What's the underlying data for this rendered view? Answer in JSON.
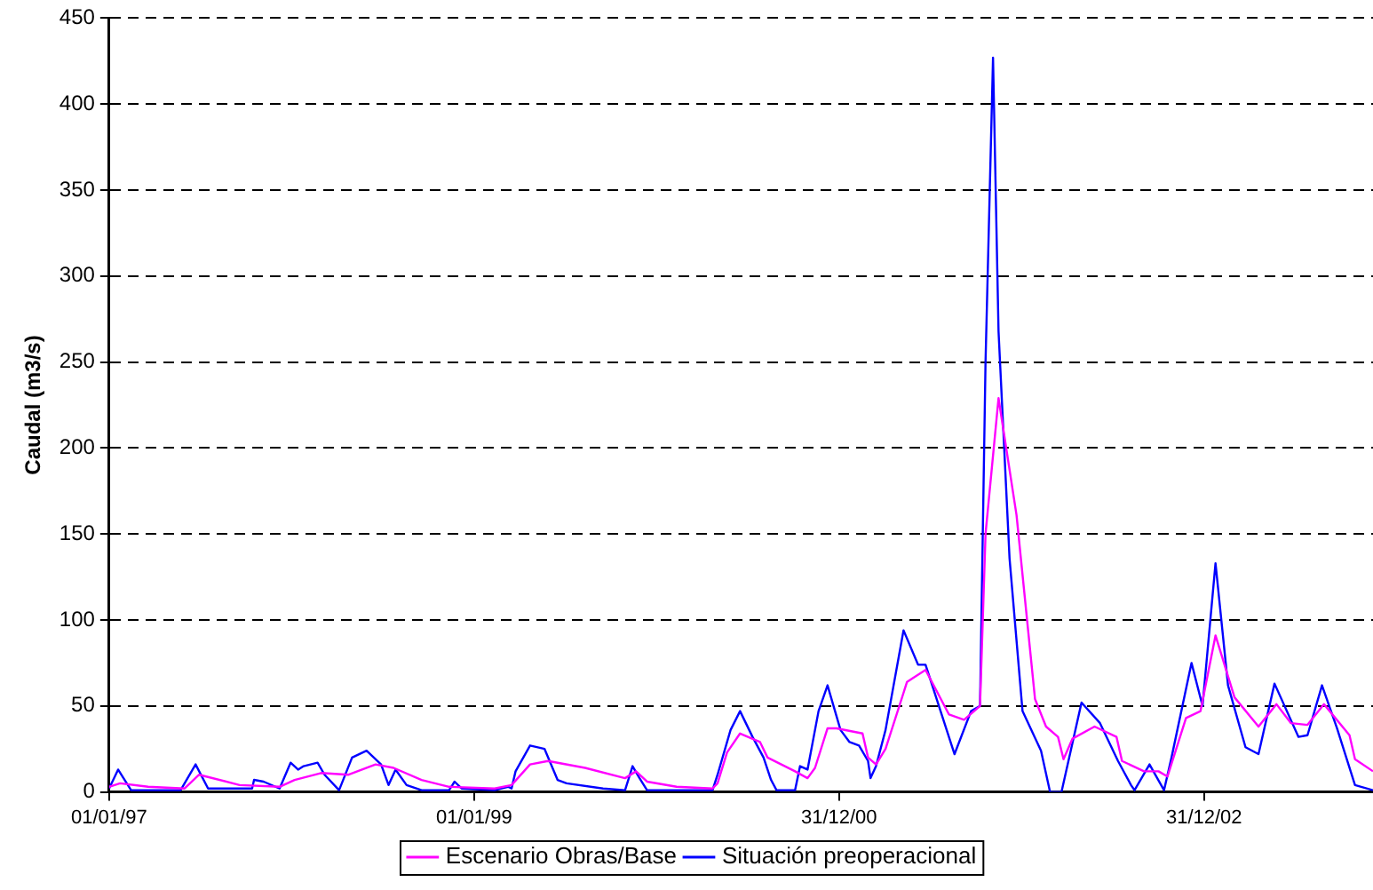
{
  "chart_data": {
    "type": "line",
    "ylabel": "Caudal (m3/s)",
    "xlim": [
      "1997-01-01",
      "2003-12-04"
    ],
    "xticks": [
      {
        "value": "1997-01-01",
        "label": "01/01/97"
      },
      {
        "value": "1999-01-01",
        "label": "01/01/99"
      },
      {
        "value": "2000-12-31",
        "label": "31/12/00"
      },
      {
        "value": "2002-12-31",
        "label": "31/12/02"
      }
    ],
    "ylim": [
      0,
      450
    ],
    "yticks": [
      0,
      50,
      100,
      150,
      200,
      250,
      300,
      350,
      400,
      450
    ],
    "grid": "y",
    "legend": "bottom",
    "marker": "none",
    "line_style": "solid",
    "series": [
      {
        "name": "Escenario Obras/Base",
        "color": "#ff00ff",
        "x": [
          "1997-01-01",
          "1997-01-23",
          "1997-03-20",
          "1997-06-01",
          "1997-06-30",
          "1997-09-19",
          "1997-12-08",
          "1998-01-07",
          "1998-03-01",
          "1998-04-25",
          "1998-06-18",
          "1998-07-24",
          "1998-09-18",
          "1998-11-12",
          "1999-02-11",
          "1999-03-17",
          "1999-04-23",
          "1999-05-29",
          "1999-08-11",
          "1999-10-30",
          "1999-11-21",
          "1999-12-13",
          "2000-02-10",
          "2000-04-22",
          "2000-05-02",
          "2000-05-21",
          "2000-06-16",
          "2000-07-26",
          "2000-08-10",
          "2000-10-04",
          "2000-10-29",
          "2000-11-13",
          "2000-12-08",
          "2000-12-26",
          "2001-02-16",
          "2001-02-27",
          "2001-03-15",
          "2001-04-03",
          "2001-05-16",
          "2001-06-22",
          "2001-08-08",
          "2001-09-07",
          "2001-10-09",
          "2001-10-20",
          "2001-11-15",
          "2001-12-21",
          "2002-01-27",
          "2002-02-18",
          "2002-03-14",
          "2002-03-25",
          "2002-04-12",
          "2002-05-26",
          "2002-07-09",
          "2002-07-20",
          "2002-09-02",
          "2002-10-01",
          "2002-10-19",
          "2002-11-25",
          "2002-12-24",
          "2003-01-23",
          "2003-03-02",
          "2003-04-19",
          "2003-05-25",
          "2003-06-23",
          "2003-07-26",
          "2003-08-28",
          "2003-10-18",
          "2003-10-29",
          "2003-12-04"
        ],
        "values": [
          3,
          5,
          3,
          2,
          10,
          4,
          3,
          7,
          11,
          10,
          16,
          14,
          7,
          3,
          2,
          4,
          16,
          18,
          14,
          8,
          12,
          6,
          3,
          2,
          5,
          23,
          34,
          29,
          20,
          12,
          8,
          14,
          37,
          37,
          34,
          20,
          16,
          25,
          64,
          71,
          45,
          42,
          50,
          150,
          229,
          161,
          54,
          38,
          32,
          19,
          31,
          38,
          32,
          18,
          12,
          12,
          9,
          43,
          47,
          91,
          55,
          38,
          51,
          40,
          39,
          51,
          33,
          19,
          12
        ]
      },
      {
        "name": "Situación preoperacional",
        "color": "#0000ff",
        "x": [
          "1997-01-01",
          "1997-01-19",
          "1997-02-14",
          "1997-05-24",
          "1997-06-23",
          "1997-07-18",
          "1997-10-14",
          "1997-10-18",
          "1997-11-06",
          "1997-12-08",
          "1997-12-30",
          "1998-01-14",
          "1998-01-25",
          "1998-02-22",
          "1998-03-08",
          "1998-04-06",
          "1998-05-02",
          "1998-05-31",
          "1998-06-29",
          "1998-07-14",
          "1998-07-28",
          "1998-08-19",
          "1998-09-18",
          "1998-11-12",
          "1998-11-23",
          "1998-12-07",
          "1999-02-11",
          "1999-03-10",
          "1999-03-17",
          "1999-03-25",
          "1999-04-23",
          "1999-05-22",
          "1999-06-17",
          "1999-07-05",
          "1999-09-16",
          "1999-10-30",
          "1999-11-14",
          "1999-11-28",
          "1999-12-13",
          "2000-04-22",
          "2000-05-02",
          "2000-05-28",
          "2000-06-16",
          "2000-07-11",
          "2000-08-02",
          "2000-08-17",
          "2000-08-28",
          "2000-10-04",
          "2000-10-14",
          "2000-10-29",
          "2000-11-20",
          "2000-12-08",
          "2001-01-03",
          "2001-01-21",
          "2001-02-09",
          "2001-02-27",
          "2001-03-04",
          "2001-03-15",
          "2001-04-03",
          "2001-05-09",
          "2001-06-07",
          "2001-06-22",
          "2001-08-19",
          "2001-09-21",
          "2001-10-09",
          "2001-10-20",
          "2001-11-04",
          "2001-11-15",
          "2001-12-07",
          "2002-01-02",
          "2002-02-08",
          "2002-02-26",
          "2002-03-21",
          "2002-04-30",
          "2002-06-06",
          "2002-07-12",
          "2002-08-07",
          "2002-08-14",
          "2002-09-13",
          "2002-10-12",
          "2002-10-27",
          "2002-12-06",
          "2002-12-28",
          "2003-01-23",
          "2003-02-17",
          "2003-03-24",
          "2003-04-19",
          "2003-05-21",
          "2003-07-08",
          "2003-07-26",
          "2003-08-24",
          "2003-09-23",
          "2003-10-29",
          "2003-12-04"
        ],
        "values": [
          2,
          13,
          1,
          1,
          16,
          2,
          2,
          7,
          6,
          2,
          17,
          13,
          15,
          17,
          10,
          1,
          20,
          24,
          16,
          4,
          13,
          4,
          1,
          1,
          6,
          2,
          1,
          3,
          2,
          12,
          27,
          25,
          7,
          5,
          2,
          1,
          15,
          8,
          1,
          1,
          10,
          36,
          47,
          32,
          20,
          7,
          1,
          1,
          15,
          13,
          47,
          62,
          36,
          29,
          27,
          18,
          8,
          15,
          36,
          94,
          74,
          74,
          22,
          47,
          50,
          250,
          427,
          268,
          136,
          47,
          24,
          0,
          0,
          52,
          40,
          18,
          4,
          1,
          16,
          1,
          20,
          75,
          50,
          133,
          62,
          26,
          22,
          63,
          32,
          33,
          62,
          37,
          4,
          1
        ]
      }
    ]
  }
}
